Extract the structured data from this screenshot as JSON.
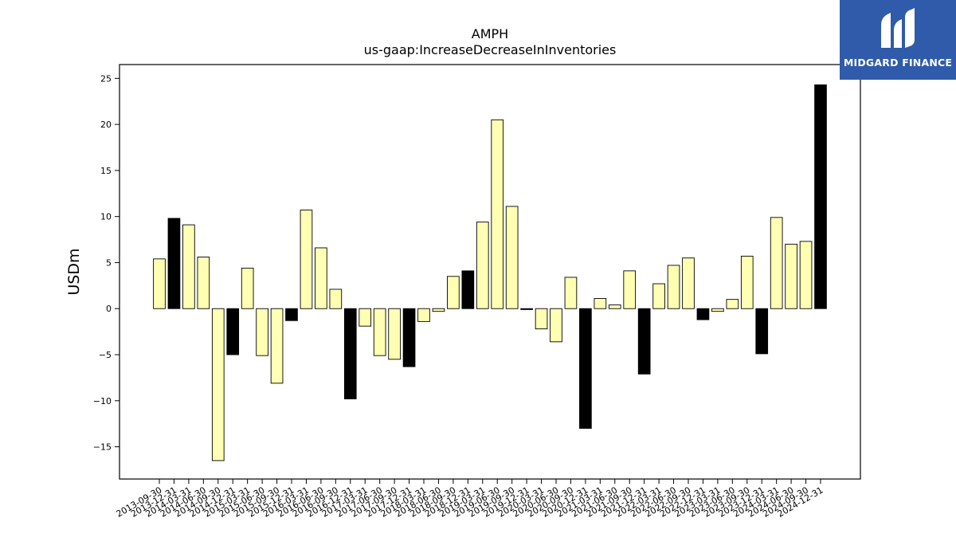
{
  "brand": {
    "name": "MIDGARD FINANCE"
  },
  "chart_data": {
    "type": "bar",
    "title": "AMPH",
    "subtitle": "us-gaap:IncreaseDecreaseInInventories",
    "ylabel": "USDm",
    "xlabel": "",
    "ylim": [
      -18.5,
      26.5
    ],
    "yticks": [
      -15,
      -10,
      -5,
      0,
      5,
      10,
      15,
      20,
      25
    ],
    "ytick_labels": [
      "−15",
      "−10",
      "−5",
      "0",
      "5",
      "10",
      "15",
      "20",
      "25"
    ],
    "grid": false,
    "legend": "none",
    "colors": {
      "quarter": "#ffffb3",
      "annual": "#000000",
      "edge": "#000000"
    },
    "categories": [
      "2013-09-30",
      "2013-12-31",
      "2014-03-31",
      "2014-06-30",
      "2014-09-30",
      "2014-12-31",
      "2015-03-31",
      "2015-06-30",
      "2015-09-30",
      "2015-12-31",
      "2016-03-31",
      "2016-06-30",
      "2016-09-30",
      "2016-12-31",
      "2017-03-31",
      "2017-06-30",
      "2017-09-30",
      "2017-12-31",
      "2018-03-31",
      "2018-06-30",
      "2018-09-30",
      "2018-12-31",
      "2019-03-31",
      "2019-06-30",
      "2019-09-30",
      "2019-12-31",
      "2020-03-31",
      "2020-06-30",
      "2020-09-30",
      "2020-12-31",
      "2021-03-31",
      "2021-06-30",
      "2021-09-30",
      "2021-12-31",
      "2022-03-31",
      "2022-06-30",
      "2022-09-30",
      "2022-12-31",
      "2023-03-31",
      "2023-06-30",
      "2023-09-30",
      "2023-12-31",
      "2024-03-31",
      "2024-06-30",
      "2024-09-30",
      "2024-12-31"
    ],
    "values": [
      5.4,
      9.8,
      9.1,
      5.6,
      -16.5,
      -5.0,
      4.4,
      -5.1,
      -8.1,
      -1.3,
      10.7,
      6.6,
      2.1,
      -9.8,
      -1.9,
      -5.1,
      -5.5,
      -6.3,
      -1.4,
      -0.3,
      3.5,
      4.1,
      9.4,
      20.5,
      11.1,
      -0.1,
      -2.2,
      -3.6,
      3.4,
      -13.0,
      1.1,
      0.4,
      4.1,
      -7.1,
      2.7,
      4.7,
      5.5,
      -1.2,
      -0.3,
      1.0,
      5.7,
      -4.9,
      9.9,
      7.0,
      7.3,
      24.3
    ],
    "annual": [
      false,
      true,
      false,
      false,
      false,
      true,
      false,
      false,
      false,
      true,
      false,
      false,
      false,
      true,
      false,
      false,
      false,
      true,
      false,
      false,
      false,
      true,
      false,
      false,
      false,
      true,
      false,
      false,
      false,
      true,
      false,
      false,
      false,
      true,
      false,
      false,
      false,
      true,
      false,
      false,
      false,
      true,
      false,
      false,
      false,
      true
    ]
  }
}
